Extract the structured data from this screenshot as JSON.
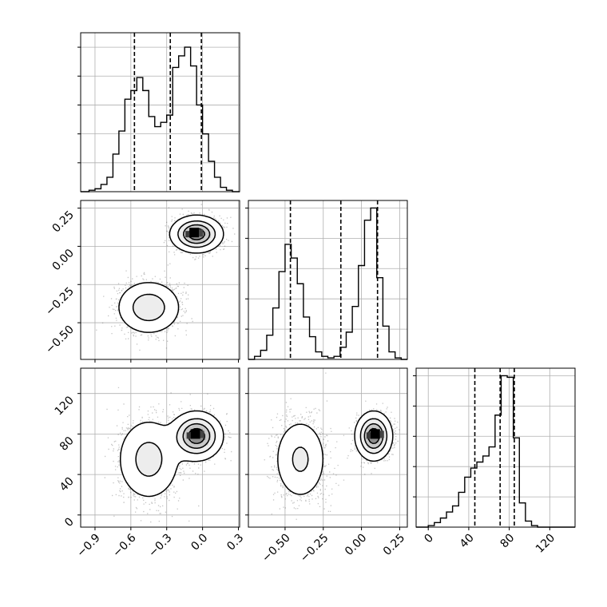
{
  "chart_data": {
    "type": "corner",
    "grid": true,
    "parameters": [
      {
        "range": [
          -1.02,
          0.31
        ],
        "ticks": [
          -0.9,
          -0.6,
          -0.3,
          0.0,
          0.3
        ],
        "tick_labels": [
          "−0.9",
          "−0.6",
          "−0.3",
          "0.0",
          "0.3"
        ],
        "quantiles": [
          -0.57,
          -0.27,
          -0.01
        ],
        "hist_ylim": [
          0,
          1.1
        ],
        "hist_edges": [
          -1.02,
          -0.95,
          -0.9,
          -0.85,
          -0.8,
          -0.75,
          -0.7,
          -0.65,
          -0.6,
          -0.55,
          -0.5,
          -0.45,
          -0.4,
          -0.35,
          -0.3,
          -0.25,
          -0.2,
          -0.15,
          -0.1,
          -0.05,
          0.0,
          0.05,
          0.1,
          0.15,
          0.2,
          0.25,
          0.31
        ],
        "hist_counts": [
          0.0,
          0.01,
          0.02,
          0.05,
          0.1,
          0.26,
          0.42,
          0.64,
          0.7,
          0.79,
          0.7,
          0.52,
          0.45,
          0.48,
          0.53,
          0.86,
          0.94,
          1.0,
          0.87,
          0.6,
          0.4,
          0.21,
          0.1,
          0.03,
          0.01,
          0.0
        ]
      },
      {
        "range": [
          -0.74,
          0.3
        ],
        "ticks": [
          -0.5,
          -0.25,
          0.0,
          0.25
        ],
        "tick_labels": [
          "−0.50",
          "−0.25",
          "0.00",
          "0.25"
        ],
        "quantiles": [
          -0.465,
          -0.135,
          0.105
        ],
        "hist_ylim": [
          0,
          1.05
        ],
        "hist_edges": [
          -0.74,
          -0.7,
          -0.66,
          -0.62,
          -0.58,
          -0.54,
          -0.5,
          -0.46,
          -0.42,
          -0.38,
          -0.34,
          -0.3,
          -0.26,
          -0.22,
          -0.18,
          -0.14,
          -0.1,
          -0.06,
          -0.02,
          0.02,
          0.06,
          0.1,
          0.14,
          0.18,
          0.22,
          0.26,
          0.3
        ],
        "hist_counts": [
          0.0,
          0.02,
          0.06,
          0.16,
          0.34,
          0.58,
          0.76,
          0.67,
          0.5,
          0.28,
          0.15,
          0.05,
          0.02,
          0.01,
          0.02,
          0.08,
          0.18,
          0.35,
          0.62,
          0.92,
          1.0,
          0.54,
          0.22,
          0.05,
          0.01,
          0.0
        ]
      },
      {
        "range": [
          -12,
          145
        ],
        "ticks": [
          0,
          40,
          80,
          120
        ],
        "tick_labels": [
          "0",
          "40",
          "80",
          "120"
        ],
        "quantiles": [
          46,
          71,
          85
        ],
        "hist_ylim": [
          0,
          1.05
        ],
        "hist_edges": [
          -12,
          -6,
          0,
          6,
          12,
          18,
          24,
          30,
          36,
          42,
          48,
          54,
          60,
          66,
          72,
          78,
          84,
          90,
          96,
          102,
          108,
          114,
          120,
          126,
          132,
          138,
          145
        ],
        "hist_counts": [
          0.0,
          0.0,
          0.01,
          0.03,
          0.06,
          0.1,
          0.14,
          0.23,
          0.33,
          0.39,
          0.43,
          0.47,
          0.53,
          0.74,
          1.0,
          0.99,
          0.59,
          0.16,
          0.04,
          0.01,
          0.0,
          0.0,
          0.0,
          0.0,
          0.0,
          0.0
        ]
      }
    ],
    "modes": [
      {
        "mean": [
          -0.45,
          -0.4,
          55
        ],
        "sd": [
          0.13,
          0.085,
          20
        ],
        "weight": 0.5
      },
      {
        "mean": [
          -0.05,
          0.08,
          78
        ],
        "sd": [
          0.1,
          0.055,
          11
        ],
        "weight": 0.5
      }
    ],
    "density_peaks": [
      {
        "params": [
          0,
          1
        ],
        "point": [
          -0.07,
          0.09
        ]
      },
      {
        "params": [
          0,
          2
        ],
        "point": [
          -0.06,
          80
        ]
      },
      {
        "params": [
          1,
          2
        ],
        "point": [
          0.09,
          80
        ]
      }
    ]
  }
}
